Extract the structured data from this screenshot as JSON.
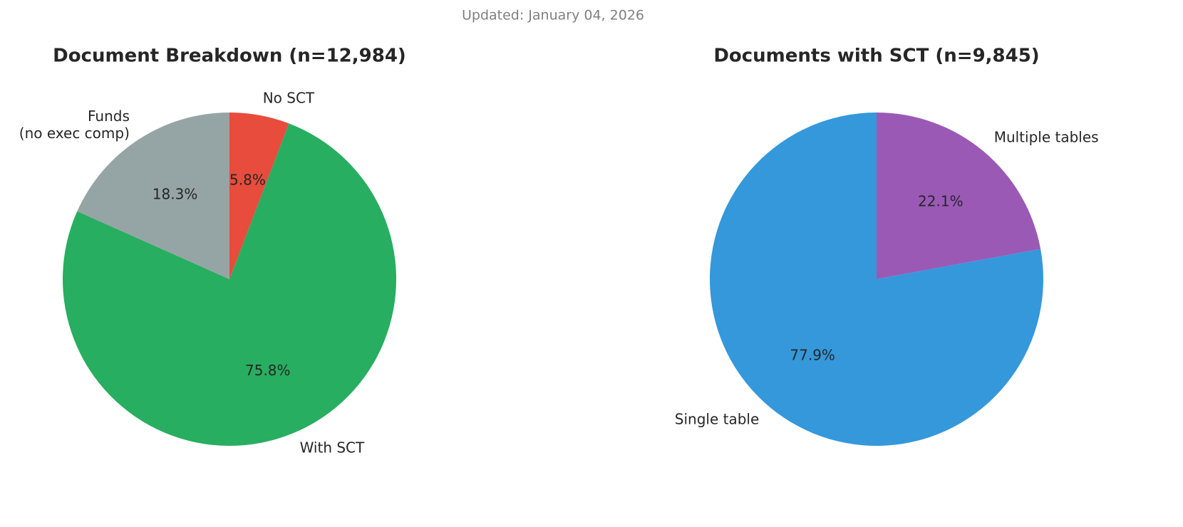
{
  "updated": "Updated: January 04, 2026",
  "chart_data": [
    {
      "type": "pie",
      "title": "Document Breakdown (n=12,984)",
      "categories": [
        "No SCT",
        "With SCT",
        "Funds\n(no exec comp)"
      ],
      "values": [
        5.8,
        75.8,
        18.3
      ],
      "value_labels": [
        "5.8%",
        "75.8%",
        "18.3%"
      ],
      "colors": [
        "#e74c3c",
        "#27ae60",
        "#95a5a6"
      ]
    },
    {
      "type": "pie",
      "title": "Documents with SCT (n=9,845)",
      "categories": [
        "Multiple tables",
        "Single table"
      ],
      "values": [
        22.1,
        77.9
      ],
      "value_labels": [
        "22.1%",
        "77.9%"
      ],
      "colors": [
        "#9b59b6",
        "#3498db"
      ]
    }
  ]
}
